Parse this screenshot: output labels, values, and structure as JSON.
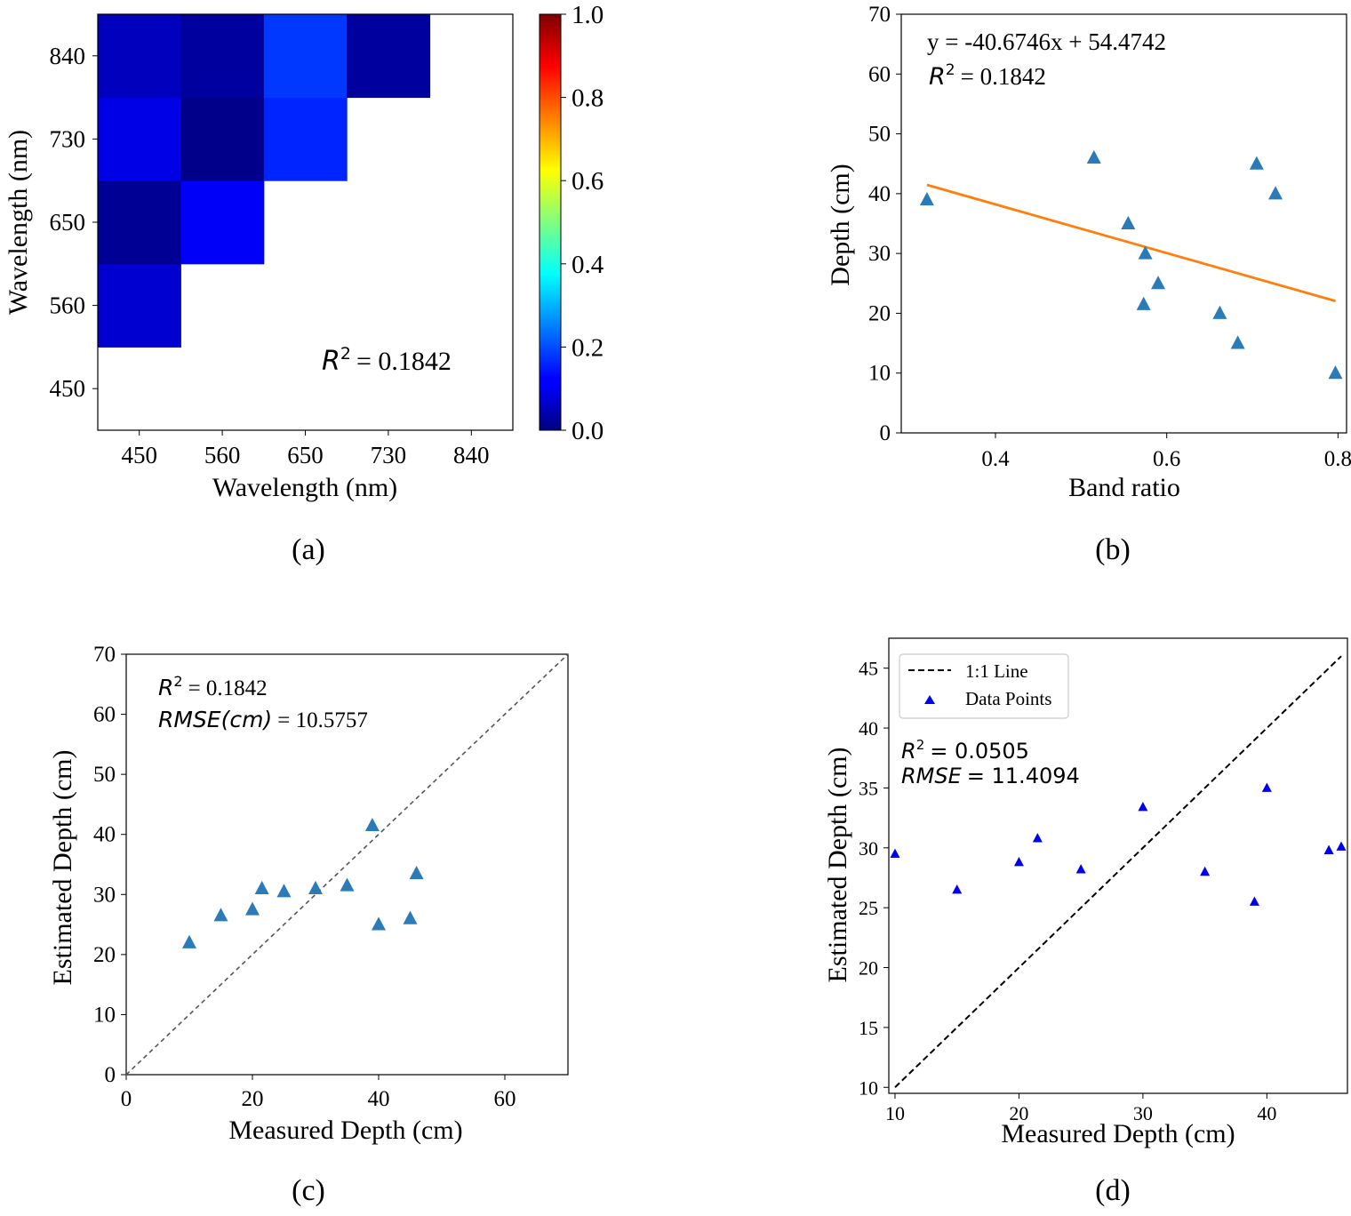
{
  "panels": {
    "a": {
      "caption": "(a)",
      "chart_data": {
        "type": "heatmap",
        "xlabel": "Wavelength (nm)",
        "ylabel": "Wavelength (nm)",
        "x_categories": [
          "450",
          "560",
          "650",
          "730",
          "840"
        ],
        "y_categories": [
          "450",
          "560",
          "650",
          "730",
          "840"
        ],
        "cells": [
          {
            "x": "450",
            "y": "560",
            "value": 0.08
          },
          {
            "x": "450",
            "y": "650",
            "value": 0.02
          },
          {
            "x": "560",
            "y": "650",
            "value": 0.12
          },
          {
            "x": "450",
            "y": "730",
            "value": 0.1
          },
          {
            "x": "560",
            "y": "730",
            "value": 0.01
          },
          {
            "x": "650",
            "y": "730",
            "value": 0.16
          },
          {
            "x": "450",
            "y": "840",
            "value": 0.06
          },
          {
            "x": "560",
            "y": "840",
            "value": 0.03
          },
          {
            "x": "650",
            "y": "840",
            "value": 0.18
          },
          {
            "x": "730",
            "y": "840",
            "value": 0.03
          }
        ],
        "colorbar": {
          "min": 0.0,
          "max": 1.0,
          "ticks": [
            "0.0",
            "0.2",
            "0.4",
            "0.6",
            "0.8",
            "1.0"
          ],
          "colormap": "jet"
        },
        "annotation": {
          "label": "R",
          "sup": "2",
          "value": "= 0.1842"
        }
      }
    },
    "b": {
      "caption": "(b)",
      "chart_data": {
        "type": "scatter",
        "xlabel": "Band ratio",
        "ylabel": "Depth (cm)",
        "xlim": [
          0.29,
          0.81
        ],
        "ylim": [
          0,
          70
        ],
        "xticks": [
          "0.4",
          "0.6",
          "0.8"
        ],
        "yticks": [
          "0",
          "10",
          "20",
          "30",
          "40",
          "50",
          "60",
          "70"
        ],
        "points": [
          {
            "x": 0.32,
            "y": 39
          },
          {
            "x": 0.515,
            "y": 46
          },
          {
            "x": 0.555,
            "y": 35
          },
          {
            "x": 0.575,
            "y": 30
          },
          {
            "x": 0.59,
            "y": 25
          },
          {
            "x": 0.573,
            "y": 21.5
          },
          {
            "x": 0.662,
            "y": 20
          },
          {
            "x": 0.683,
            "y": 15
          },
          {
            "x": 0.705,
            "y": 45
          },
          {
            "x": 0.727,
            "y": 40
          },
          {
            "x": 0.797,
            "y": 10
          }
        ],
        "fit_line": {
          "x": [
            0.32,
            0.797
          ],
          "y": [
            41.46,
            22.05
          ]
        },
        "equation": "y = -40.6746x + 54.4742",
        "r2_label": "R",
        "r2_sup": "2",
        "r2_value": "= 0.1842",
        "marker_color": "#2a7bb8",
        "line_color": "#ff7f0e"
      }
    },
    "c": {
      "caption": "(c)",
      "chart_data": {
        "type": "scatter",
        "xlabel": "Measured Depth (cm)",
        "ylabel": "Estimated Depth (cm)",
        "xlim": [
          0,
          70
        ],
        "ylim": [
          0,
          70
        ],
        "xticks": [
          "0",
          "20",
          "40",
          "60"
        ],
        "yticks": [
          "0",
          "10",
          "20",
          "30",
          "40",
          "50",
          "60",
          "70"
        ],
        "points": [
          {
            "x": 10,
            "y": 22
          },
          {
            "x": 15,
            "y": 26.5
          },
          {
            "x": 20,
            "y": 27.5
          },
          {
            "x": 21.5,
            "y": 31
          },
          {
            "x": 25,
            "y": 30.5
          },
          {
            "x": 30,
            "y": 31
          },
          {
            "x": 35,
            "y": 31.5
          },
          {
            "x": 39,
            "y": 41.5
          },
          {
            "x": 40,
            "y": 25
          },
          {
            "x": 45,
            "y": 26
          },
          {
            "x": 46,
            "y": 33.5
          }
        ],
        "r2_label": "R",
        "r2_sup": "2",
        "r2_value": "= 0.1842",
        "rmse_label": "RMSE(cm)",
        "rmse_value": "= 10.5757",
        "marker_color": "#2a7bb8",
        "line_color": "#555555"
      }
    },
    "d": {
      "caption": "(d)",
      "chart_data": {
        "type": "scatter",
        "xlabel": "Measured Depth (cm)",
        "ylabel": "Estimated Depth (cm)",
        "xlim": [
          9.5,
          46.5
        ],
        "ylim": [
          9.5,
          47.5
        ],
        "xticks": [
          "10",
          "20",
          "30",
          "40"
        ],
        "yticks": [
          "10",
          "15",
          "20",
          "25",
          "30",
          "35",
          "40",
          "45"
        ],
        "points": [
          {
            "x": 10,
            "y": 29.5
          },
          {
            "x": 15,
            "y": 26.5
          },
          {
            "x": 20,
            "y": 28.8
          },
          {
            "x": 21.5,
            "y": 30.8
          },
          {
            "x": 25,
            "y": 28.2
          },
          {
            "x": 30,
            "y": 33.4
          },
          {
            "x": 35,
            "y": 28
          },
          {
            "x": 39,
            "y": 25.5
          },
          {
            "x": 40,
            "y": 35
          },
          {
            "x": 45,
            "y": 29.8
          },
          {
            "x": 46,
            "y": 30.1
          }
        ],
        "legend": [
          {
            "label": "1:1 Line",
            "kind": "line"
          },
          {
            "label": "Data Points",
            "kind": "marker"
          }
        ],
        "r2_label": "R",
        "r2_sup": "2",
        "r2_value": "= 0.0505",
        "rmse_label": "RMSE",
        "rmse_value": "= 11.4094",
        "marker_color": "#0000ee",
        "line_color": "#000000"
      }
    }
  }
}
